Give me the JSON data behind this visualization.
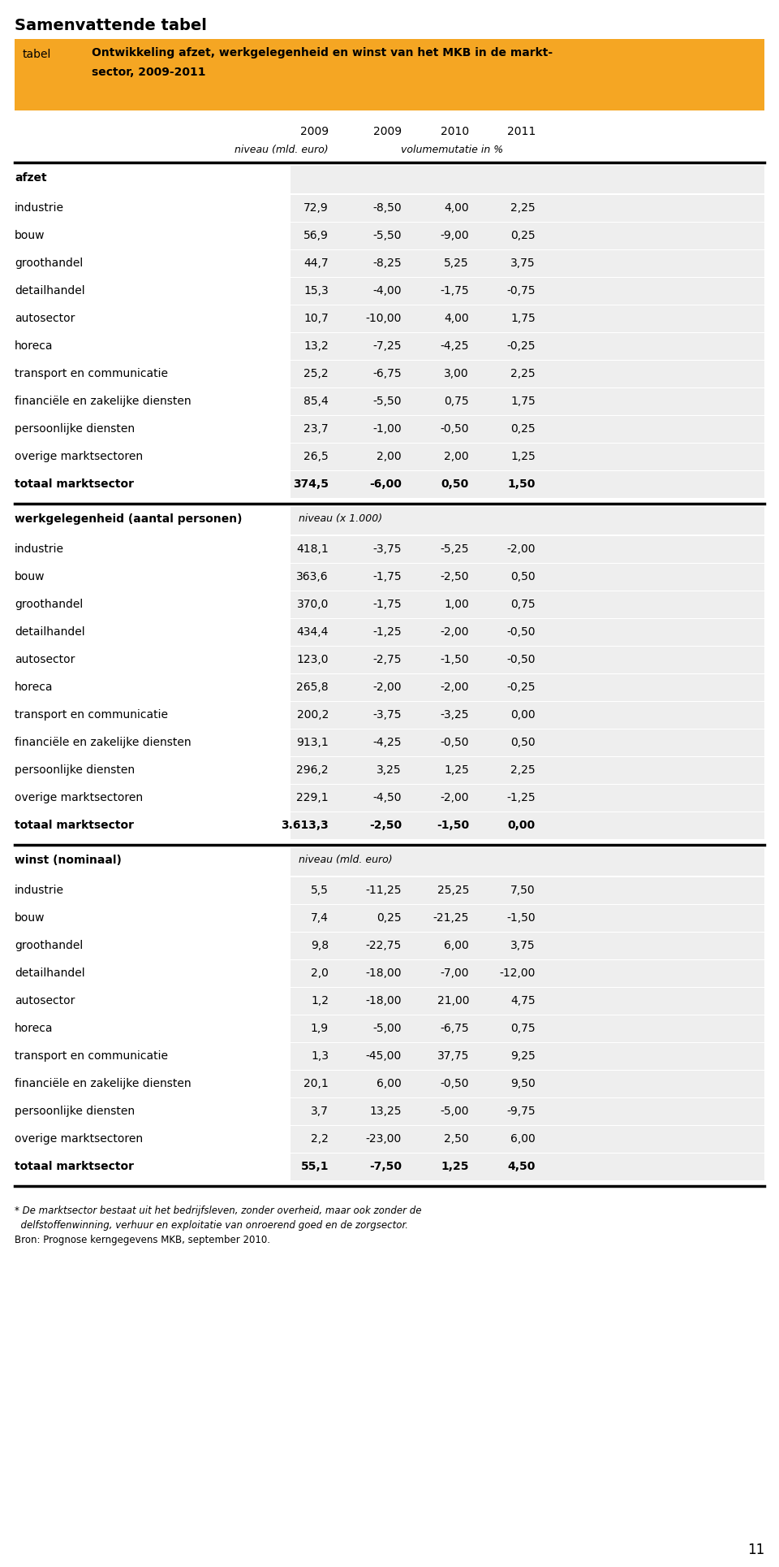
{
  "title": "Samenvattende tabel",
  "orange_label": "tabel",
  "orange_color": "#F5A623",
  "col_headers_years": [
    "2009",
    "2009",
    "2010",
    "2011"
  ],
  "footnote1": "* De marktsector bestaat uit het bedrijfsleven, zonder overheid, maar ook zonder de",
  "footnote2": "  delfstoffenwinning, verhuur en exploitatie van onroerend goed en de zorgsector.",
  "footnote3": "Bron: Prognose kerngegevens MKB, september 2010.",
  "page_number": "11",
  "orange_line1": "Ontwikkeling afzet, werkgelegenheid en winst van het MKB in de markt-",
  "orange_line2": "sector, 2009-2011",
  "subhdr_niveau": "niveau (mld. euro)",
  "subhdr_volume": "volumemutatie in %",
  "sections": [
    {
      "header": "afzet",
      "header_bold": true,
      "subheader_text": "",
      "subheader_italic": false,
      "rows": [
        {
          "label": "industrie",
          "v1": "72,9",
          "v2": "-8,50",
          "v3": "4,00",
          "v4": "2,25"
        },
        {
          "label": "bouw",
          "v1": "56,9",
          "v2": "-5,50",
          "v3": "-9,00",
          "v4": "0,25"
        },
        {
          "label": "groothandel",
          "v1": "44,7",
          "v2": "-8,25",
          "v3": "5,25",
          "v4": "3,75"
        },
        {
          "label": "detailhandel",
          "v1": "15,3",
          "v2": "-4,00",
          "v3": "-1,75",
          "v4": "-0,75"
        },
        {
          "label": "autosector",
          "v1": "10,7",
          "v2": "-10,00",
          "v3": "4,00",
          "v4": "1,75"
        },
        {
          "label": "horeca",
          "v1": "13,2",
          "v2": "-7,25",
          "v3": "-4,25",
          "v4": "-0,25"
        },
        {
          "label": "transport en communicatie",
          "v1": "25,2",
          "v2": "-6,75",
          "v3": "3,00",
          "v4": "2,25"
        },
        {
          "label": "financiële en zakelijke diensten",
          "v1": "85,4",
          "v2": "-5,50",
          "v3": "0,75",
          "v4": "1,75"
        },
        {
          "label": "persoonlijke diensten",
          "v1": "23,7",
          "v2": "-1,00",
          "v3": "-0,50",
          "v4": "0,25"
        },
        {
          "label": "overige marktsectoren",
          "v1": "26,5",
          "v2": "2,00",
          "v3": "2,00",
          "v4": "1,25"
        },
        {
          "label": "totaal marktsector",
          "v1": "374,5",
          "v2": "-6,00",
          "v3": "0,50",
          "v4": "1,50",
          "bold": true
        }
      ]
    },
    {
      "header": "werkgelegenheid (aantal personen)",
      "header_bold": true,
      "subheader_text": "niveau (x 1.000)",
      "subheader_italic": true,
      "rows": [
        {
          "label": "industrie",
          "v1": "418,1",
          "v2": "-3,75",
          "v3": "-5,25",
          "v4": "-2,00"
        },
        {
          "label": "bouw",
          "v1": "363,6",
          "v2": "-1,75",
          "v3": "-2,50",
          "v4": "0,50"
        },
        {
          "label": "groothandel",
          "v1": "370,0",
          "v2": "-1,75",
          "v3": "1,00",
          "v4": "0,75"
        },
        {
          "label": "detailhandel",
          "v1": "434,4",
          "v2": "-1,25",
          "v3": "-2,00",
          "v4": "-0,50"
        },
        {
          "label": "autosector",
          "v1": "123,0",
          "v2": "-2,75",
          "v3": "-1,50",
          "v4": "-0,50"
        },
        {
          "label": "horeca",
          "v1": "265,8",
          "v2": "-2,00",
          "v3": "-2,00",
          "v4": "-0,25"
        },
        {
          "label": "transport en communicatie",
          "v1": "200,2",
          "v2": "-3,75",
          "v3": "-3,25",
          "v4": "0,00"
        },
        {
          "label": "financiële en zakelijke diensten",
          "v1": "913,1",
          "v2": "-4,25",
          "v3": "-0,50",
          "v4": "0,50"
        },
        {
          "label": "persoonlijke diensten",
          "v1": "296,2",
          "v2": "3,25",
          "v3": "1,25",
          "v4": "2,25"
        },
        {
          "label": "overige marktsectoren",
          "v1": "229,1",
          "v2": "-4,50",
          "v3": "-2,00",
          "v4": "-1,25"
        },
        {
          "label": "totaal marktsector",
          "v1": "3.613,3",
          "v2": "-2,50",
          "v3": "-1,50",
          "v4": "0,00",
          "bold": true
        }
      ]
    },
    {
      "header": "winst (nominaal)",
      "header_bold": true,
      "subheader_text": "niveau (mld. euro)",
      "subheader_italic": true,
      "rows": [
        {
          "label": "industrie",
          "v1": "5,5",
          "v2": "-11,25",
          "v3": "25,25",
          "v4": "7,50"
        },
        {
          "label": "bouw",
          "v1": "7,4",
          "v2": "0,25",
          "v3": "-21,25",
          "v4": "-1,50"
        },
        {
          "label": "groothandel",
          "v1": "9,8",
          "v2": "-22,75",
          "v3": "6,00",
          "v4": "3,75"
        },
        {
          "label": "detailhandel",
          "v1": "2,0",
          "v2": "-18,00",
          "v3": "-7,00",
          "v4": "-12,00"
        },
        {
          "label": "autosector",
          "v1": "1,2",
          "v2": "-18,00",
          "v3": "21,00",
          "v4": "4,75"
        },
        {
          "label": "horeca",
          "v1": "1,9",
          "v2": "-5,00",
          "v3": "-6,75",
          "v4": "0,75"
        },
        {
          "label": "transport en communicatie",
          "v1": "1,3",
          "v2": "-45,00",
          "v3": "37,75",
          "v4": "9,25"
        },
        {
          "label": "financiële en zakelijke diensten",
          "v1": "20,1",
          "v2": "6,00",
          "v3": "-0,50",
          "v4": "9,50"
        },
        {
          "label": "persoonlijke diensten",
          "v1": "3,7",
          "v2": "13,25",
          "v3": "-5,00",
          "v4": "-9,75"
        },
        {
          "label": "overige marktsectoren",
          "v1": "2,2",
          "v2": "-23,00",
          "v3": "2,50",
          "v4": "6,00"
        },
        {
          "label": "totaal marktsector",
          "v1": "55,1",
          "v2": "-7,50",
          "v3": "1,25",
          "v4": "4,50",
          "bold": true
        }
      ]
    }
  ]
}
